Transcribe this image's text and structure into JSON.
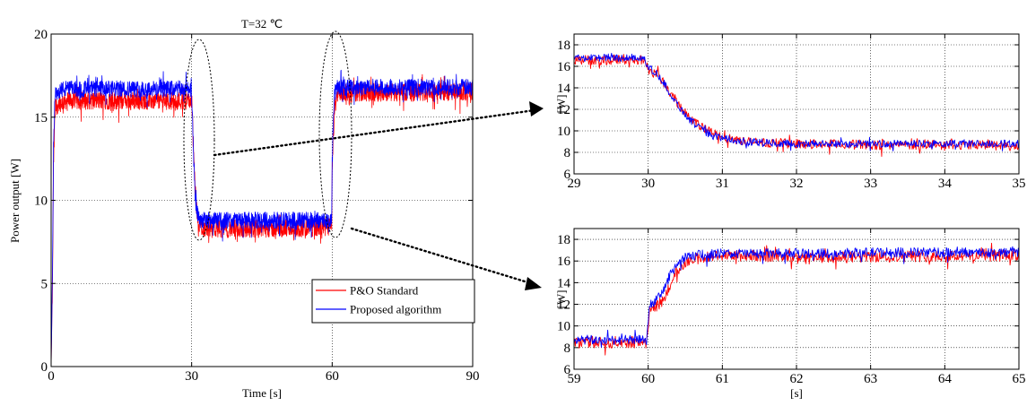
{
  "chart_data": [
    {
      "id": "main",
      "type": "line",
      "title": "T=32 ℃",
      "xlabel": "Time [s]",
      "ylabel": "Power output [W]",
      "xlim": [
        0,
        90
      ],
      "ylim": [
        0,
        20
      ],
      "xticks": [
        0,
        30,
        60,
        90
      ],
      "yticks": [
        0,
        5,
        10,
        15,
        20
      ],
      "grid": true,
      "legend_position": "bottom-right",
      "series": [
        {
          "name": "P&O Standard",
          "color": "#ff0000",
          "x": [
            0,
            0.3,
            0.5,
            0.8,
            1,
            1.5,
            3,
            10,
            20,
            29.9,
            30.1,
            30.4,
            30.7,
            31,
            31.5,
            32,
            33,
            40,
            50,
            59.9,
            60,
            60.2,
            60.5,
            61,
            62,
            63,
            64,
            65,
            70,
            80,
            90
          ],
          "y": [
            0,
            5,
            12,
            15,
            15.6,
            15.8,
            16,
            16,
            16,
            16,
            15.3,
            13,
            11,
            9.5,
            8.6,
            8.4,
            8.3,
            8.3,
            8.3,
            8.4,
            11.8,
            13.5,
            15.5,
            16.3,
            16.5,
            16.3,
            16.4,
            16.5,
            16.5,
            16.5,
            16.5
          ],
          "noise": 0.55
        },
        {
          "name": "Proposed algorithm",
          "color": "#0000ff",
          "x": [
            0,
            0.3,
            0.5,
            0.8,
            1,
            1.5,
            3,
            10,
            20,
            29.9,
            30.1,
            30.4,
            30.7,
            31,
            31.5,
            32,
            33,
            40,
            50,
            59.9,
            60,
            60.2,
            60.5,
            61,
            62,
            63,
            64,
            65,
            70,
            80,
            90
          ],
          "y": [
            0,
            6,
            13,
            16,
            16.5,
            16.6,
            16.7,
            16.7,
            16.7,
            16.7,
            15.5,
            12.8,
            10.5,
            9.4,
            8.9,
            8.8,
            8.8,
            8.8,
            8.8,
            8.8,
            12.2,
            14.5,
            16.2,
            16.8,
            16.8,
            16.8,
            16.8,
            16.8,
            16.8,
            16.8,
            16.8
          ],
          "noise": 0.5
        }
      ]
    },
    {
      "id": "zoom-top",
      "type": "line",
      "title": "",
      "xlabel": "",
      "ylabel": "[W]",
      "xlim": [
        29,
        35
      ],
      "ylim": [
        6,
        19
      ],
      "xticks": [
        29,
        30,
        31,
        32,
        33,
        34,
        35
      ],
      "yticks": [
        6,
        8,
        10,
        12,
        14,
        16,
        18
      ],
      "grid": true,
      "series": [
        {
          "name": "P&O Standard",
          "color": "#ff0000",
          "x": [
            29,
            29.5,
            29.95,
            30,
            30.1,
            30.2,
            30.3,
            30.4,
            30.5,
            30.6,
            30.7,
            30.8,
            31,
            31.3,
            31.6,
            32,
            33,
            34,
            35
          ],
          "y": [
            16.6,
            16.6,
            16.6,
            15.7,
            15.4,
            14.6,
            13.5,
            12.6,
            11.8,
            11.0,
            10.4,
            10.0,
            9.4,
            9.0,
            8.9,
            8.8,
            8.7,
            8.7,
            8.7
          ],
          "noise": 0.45
        },
        {
          "name": "Proposed algorithm",
          "color": "#0000ff",
          "x": [
            29,
            29.5,
            29.95,
            30,
            30.1,
            30.2,
            30.3,
            30.4,
            30.5,
            30.6,
            30.7,
            30.8,
            31,
            31.3,
            31.6,
            32,
            33,
            34,
            35
          ],
          "y": [
            16.8,
            16.8,
            16.8,
            15.8,
            15.5,
            14.6,
            13.4,
            12.4,
            11.5,
            10.8,
            10.2,
            9.8,
            9.3,
            9.0,
            8.9,
            8.8,
            8.8,
            8.8,
            8.8
          ],
          "noise": 0.35
        }
      ]
    },
    {
      "id": "zoom-bottom",
      "type": "line",
      "title": "",
      "xlabel": "[s]",
      "ylabel": "[W]",
      "xlim": [
        59,
        65
      ],
      "ylim": [
        6,
        19
      ],
      "xticks": [
        59,
        60,
        61,
        62,
        63,
        64,
        65
      ],
      "yticks": [
        6,
        8,
        10,
        12,
        14,
        16,
        18
      ],
      "grid": true,
      "series": [
        {
          "name": "P&O Standard",
          "color": "#ff0000",
          "x": [
            59,
            59.5,
            59.98,
            60.02,
            60.1,
            60.2,
            60.3,
            60.4,
            60.5,
            60.7,
            61,
            61.5,
            62,
            62.5,
            63,
            64,
            65
          ],
          "y": [
            8.5,
            8.5,
            8.5,
            11.6,
            11.8,
            12.3,
            14.0,
            15.2,
            15.9,
            16.3,
            16.5,
            16.5,
            16.2,
            16.3,
            16.4,
            16.5,
            16.5
          ],
          "noise": 0.55
        },
        {
          "name": "Proposed algorithm",
          "color": "#0000ff",
          "x": [
            59,
            59.5,
            59.98,
            60.02,
            60.1,
            60.2,
            60.3,
            60.4,
            60.5,
            60.7,
            61,
            61.5,
            62,
            62.5,
            63,
            64,
            65
          ],
          "y": [
            8.7,
            8.7,
            8.7,
            12.0,
            12.3,
            13.2,
            14.8,
            15.8,
            16.3,
            16.6,
            16.7,
            16.7,
            16.7,
            16.7,
            16.8,
            16.8,
            16.8
          ],
          "noise": 0.45
        }
      ]
    }
  ]
}
